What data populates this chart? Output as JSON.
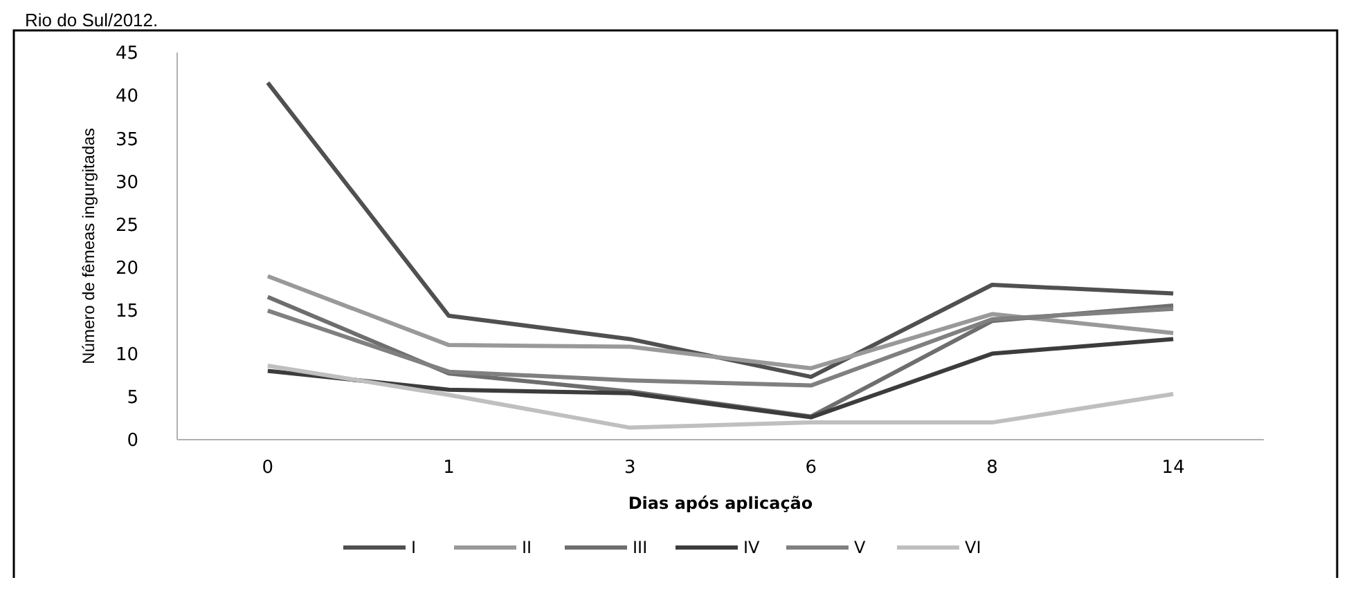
{
  "chart_data": {
    "type": "line",
    "xlabel": "Dias após aplicação",
    "ylabel": "Número de fêmeas ingurgitadas",
    "annotations": [
      "Rio do Sul/2012."
    ],
    "categories": [
      "0",
      "1",
      "3",
      "6",
      "8",
      "14"
    ],
    "series": [
      {
        "name": "I",
        "color": "#505050",
        "values": [
          41.5,
          14.4,
          11.7,
          7.3,
          18,
          17
        ]
      },
      {
        "name": "II",
        "color": "#999999",
        "values": [
          19,
          11,
          10.8,
          8.3,
          14.6,
          12.4
        ]
      },
      {
        "name": "III",
        "color": "#6e6e6e",
        "values": [
          16.6,
          7.7,
          5.6,
          2.7,
          13.8,
          15.6
        ]
      },
      {
        "name": "IV",
        "color": "#3c3c3c",
        "values": [
          8,
          5.8,
          5.4,
          2.6,
          10,
          11.7
        ]
      },
      {
        "name": "V",
        "color": "#808080",
        "values": [
          15,
          7.9,
          6.9,
          6.3,
          14,
          15.2
        ]
      },
      {
        "name": "VI",
        "color": "#bfbfbf",
        "values": [
          8.6,
          5.2,
          1.4,
          2,
          2,
          5.3
        ]
      }
    ],
    "ylim": [
      0,
      45
    ],
    "yticks": [
      0,
      5,
      10,
      15,
      20,
      25,
      30,
      35,
      40,
      45
    ],
    "grid": false,
    "legend": "bottom",
    "marker": "none",
    "line_style": "solid"
  }
}
